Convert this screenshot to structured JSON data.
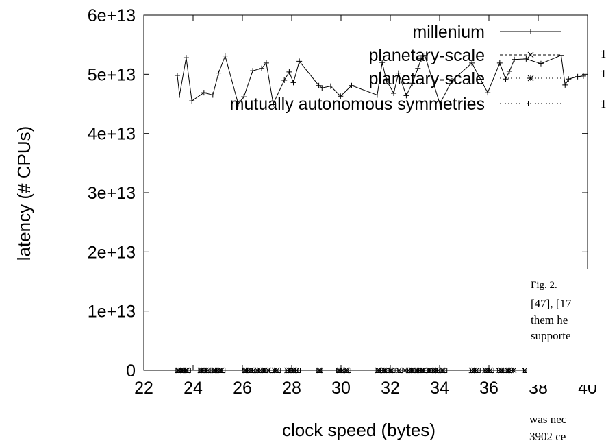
{
  "chart_data": {
    "type": "line",
    "title": "",
    "xlabel": "clock speed (bytes)",
    "ylabel": "latency (# CPUs)",
    "xlim": [
      22,
      40
    ],
    "ylim": [
      0,
      60000000000000
    ],
    "x_ticks": [
      {
        "value": 22,
        "label": "22"
      },
      {
        "value": 24,
        "label": "24"
      },
      {
        "value": 26,
        "label": "26"
      },
      {
        "value": 28,
        "label": "28"
      },
      {
        "value": 30,
        "label": "30"
      },
      {
        "value": 32,
        "label": "32"
      },
      {
        "value": 34,
        "label": "34"
      },
      {
        "value": 36,
        "label": "36"
      },
      {
        "value": 38,
        "label": "38"
      },
      {
        "value": 40,
        "label": "40"
      }
    ],
    "y_ticks": [
      {
        "value": 0,
        "label": "0"
      },
      {
        "value": 10000000000000,
        "label": "1e+13"
      },
      {
        "value": 20000000000000,
        "label": "2e+13"
      },
      {
        "value": 30000000000000,
        "label": "3e+13"
      },
      {
        "value": 40000000000000,
        "label": "4e+13"
      },
      {
        "value": 50000000000000,
        "label": "5e+13"
      },
      {
        "value": 60000000000000,
        "label": "6e+13"
      }
    ],
    "grid": false,
    "legend_position": "top-right",
    "series": [
      {
        "name": "millenium",
        "line": "solid",
        "marker": "plus",
        "x": [
          23.36,
          23.45,
          23.72,
          23.95,
          24.44,
          24.8,
          25.03,
          25.3,
          25.83,
          26.06,
          26.42,
          26.78,
          26.97,
          27.25,
          27.7,
          27.9,
          28.07,
          28.31,
          29.1,
          29.23,
          29.58,
          29.98,
          30.43,
          31.47,
          31.67,
          31.84,
          32.14,
          32.33,
          32.65,
          32.89,
          33.12,
          33.25,
          33.4,
          34.01,
          34.5,
          35.31,
          35.95,
          36.44,
          36.68,
          36.83,
          37.03,
          37.51,
          38.11,
          38.93,
          39.09,
          39.23,
          39.6,
          39.83
        ],
        "y": [
          49800000000000,
          46500000000000,
          52800000000000,
          45500000000000,
          46900000000000,
          46500000000000,
          50200000000000,
          53100000000000,
          45000000000000,
          46200000000000,
          50600000000000,
          51000000000000,
          51900000000000,
          45000000000000,
          49000000000000,
          50400000000000,
          48600000000000,
          52200000000000,
          48100000000000,
          47700000000000,
          48000000000000,
          46300000000000,
          48100000000000,
          46500000000000,
          52000000000000,
          49000000000000,
          46800000000000,
          50200000000000,
          46400000000000,
          48500000000000,
          51000000000000,
          52600000000000,
          53200000000000,
          45000000000000,
          48900000000000,
          51900000000000,
          46900000000000,
          51900000000000,
          49200000000000,
          50500000000000,
          52500000000000,
          52600000000000,
          51800000000000,
          53200000000000,
          48200000000000,
          49200000000000,
          49600000000000,
          49700000000000
        ]
      },
      {
        "name": "planetary-scale",
        "line": "dashed",
        "marker": "x",
        "x": [
          23.38,
          23.52,
          23.62,
          23.75,
          24.3,
          24.45,
          24.6,
          24.85,
          25.0,
          25.15,
          26.1,
          26.25,
          26.45,
          26.72,
          26.85,
          27.05,
          27.4,
          27.82,
          27.97,
          28.1,
          28.2,
          29.1,
          29.9,
          30.05,
          30.25,
          31.5,
          31.65,
          31.8,
          32.05,
          32.35,
          32.75,
          32.9,
          33.05,
          33.2,
          33.35,
          33.55,
          33.75,
          33.95,
          34.15,
          35.3,
          35.5,
          35.85,
          36.05,
          36.4,
          36.75,
          36.9,
          37.45,
          37.9,
          38.7,
          39.05,
          39.2,
          39.55,
          39.8
        ],
        "y": [
          0,
          0,
          0,
          0,
          0,
          0,
          0,
          0,
          0,
          0,
          0,
          0,
          0,
          0,
          0,
          0,
          0,
          0,
          0,
          0,
          0,
          0,
          0,
          0,
          0,
          0,
          0,
          0,
          0,
          0,
          0,
          0,
          0,
          0,
          0,
          0,
          0,
          0,
          0,
          0,
          0,
          0,
          0,
          0,
          0,
          0,
          0,
          0,
          0,
          0,
          0,
          0,
          0
        ]
      },
      {
        "name": "planetary-scale",
        "line": "dotted",
        "marker": "star",
        "x": [
          23.42,
          23.58,
          23.7,
          24.35,
          24.52,
          24.9,
          25.1,
          26.15,
          26.35,
          26.6,
          26.9,
          27.3,
          27.9,
          28.05,
          29.15,
          29.95,
          30.2,
          31.55,
          31.75,
          32.0,
          32.6,
          32.85,
          33.1,
          33.3,
          33.6,
          33.85,
          34.1,
          35.4,
          35.95,
          36.5,
          36.8,
          37.0,
          38.0,
          39.1,
          39.3
        ],
        "y": [
          0,
          0,
          0,
          0,
          0,
          0,
          0,
          0,
          0,
          0,
          0,
          0,
          0,
          0,
          0,
          0,
          0,
          0,
          0,
          0,
          0,
          0,
          0,
          0,
          0,
          0,
          0,
          0,
          0,
          0,
          0,
          0,
          0,
          0,
          0
        ]
      },
      {
        "name": "mutually autonomous symmetries",
        "line": "dotted",
        "marker": "square",
        "x": [
          23.4,
          23.55,
          23.68,
          23.8,
          24.32,
          24.48,
          24.62,
          24.88,
          25.05,
          25.2,
          26.12,
          26.3,
          26.5,
          26.75,
          26.95,
          27.2,
          27.45,
          27.85,
          28.0,
          28.15,
          28.25,
          29.12,
          29.92,
          30.1,
          30.3,
          31.52,
          31.7,
          31.85,
          32.1,
          32.4,
          32.8,
          32.95,
          33.15,
          33.25,
          33.45,
          33.65,
          33.8,
          34.0,
          34.2,
          35.35,
          35.55,
          35.9,
          36.1,
          36.45,
          36.7,
          36.85,
          37.5,
          37.95,
          38.75,
          39.0,
          39.25,
          39.6,
          39.85
        ],
        "y": [
          0,
          0,
          0,
          0,
          0,
          0,
          0,
          0,
          0,
          0,
          0,
          0,
          0,
          0,
          0,
          0,
          0,
          0,
          0,
          0,
          0,
          0,
          0,
          0,
          0,
          0,
          0,
          0,
          0,
          0,
          0,
          0,
          0,
          0,
          0,
          0,
          0,
          0,
          0,
          0,
          0,
          0,
          0,
          0,
          0,
          0,
          0,
          0,
          0,
          0,
          0,
          0,
          0
        ]
      }
    ]
  },
  "caption": {
    "line1": "Fig. 2.",
    "line2": "[47], [17",
    "line3": "them  he",
    "line4": "supporte",
    "line5": "was  nec",
    "line6": "3902  ce"
  },
  "edge_fragments": [
    "1",
    "1",
    "1"
  ]
}
